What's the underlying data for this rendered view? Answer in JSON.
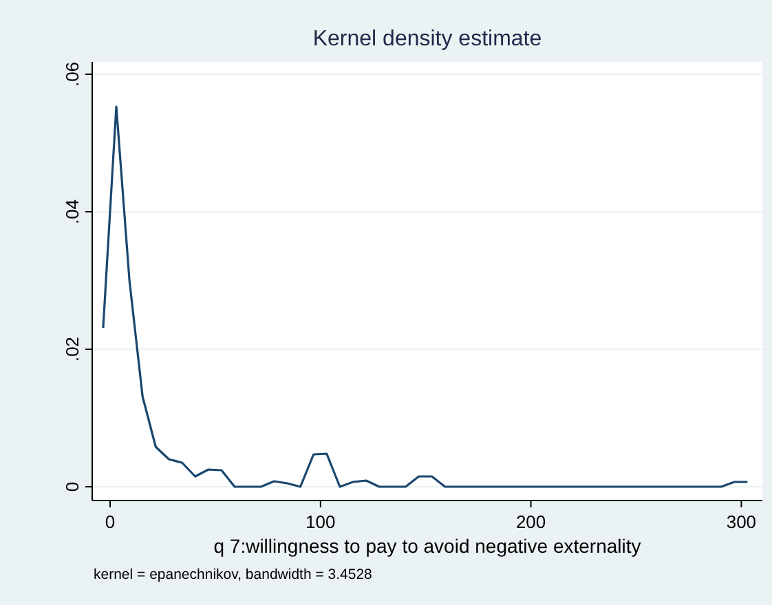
{
  "chart_data": {
    "type": "line",
    "title": "Kernel density estimate",
    "xlabel": "q 7:willingness to pay to avoid negative externality",
    "annotations": [
      "kernel = epanechnikov, bandwidth = 3.4528"
    ],
    "series": [
      {
        "color": "#1a476f",
        "x": [
          -3.3,
          2.95,
          9.2,
          15.45,
          21.7,
          27.95,
          34.2,
          40.45,
          46.7,
          52.95,
          59.2,
          65.45,
          71.7,
          77.95,
          84.2,
          90.45,
          96.7,
          102.95,
          109.2,
          115.45,
          121.7,
          127.95,
          134.2,
          140.45,
          146.7,
          152.95,
          159.2,
          165.45,
          171.7,
          177.95,
          184.2,
          190.45,
          196.7,
          202.95,
          209.2,
          215.45,
          221.7,
          227.95,
          234.2,
          240.45,
          246.7,
          252.95,
          259.2,
          265.45,
          271.7,
          277.95,
          284.2,
          290.45,
          296.7,
          302.95
        ],
        "values": [
          0.0231,
          0.0553,
          0.03,
          0.0131,
          0.0058,
          0.004,
          0.0035,
          0.0015,
          0.0025,
          0.0024,
          0,
          0,
          0,
          0.0008,
          0.0005,
          0,
          0.0047,
          0.0048,
          0,
          0.0007,
          0.0009,
          0,
          0,
          0,
          0.0015,
          0.0015,
          0,
          0,
          0,
          0,
          0,
          0,
          0,
          0,
          0,
          0,
          0,
          0,
          0,
          0,
          0,
          0,
          0,
          0,
          0,
          0,
          0,
          0,
          0.0007,
          0.0007
        ]
      }
    ],
    "xlim": [
      -8.5,
      310
    ],
    "xticks": [
      0,
      100,
      200,
      300
    ],
    "ylim": [
      -0.002,
      0.0618
    ],
    "yticks": [
      0,
      {
        "value": 0.02,
        "label": ".02"
      },
      {
        "value": 0.04,
        "label": ".04"
      },
      {
        "value": 0.06,
        "label": ".06"
      }
    ],
    "grid": "y",
    "marker": "none",
    "line_style": "solid"
  }
}
